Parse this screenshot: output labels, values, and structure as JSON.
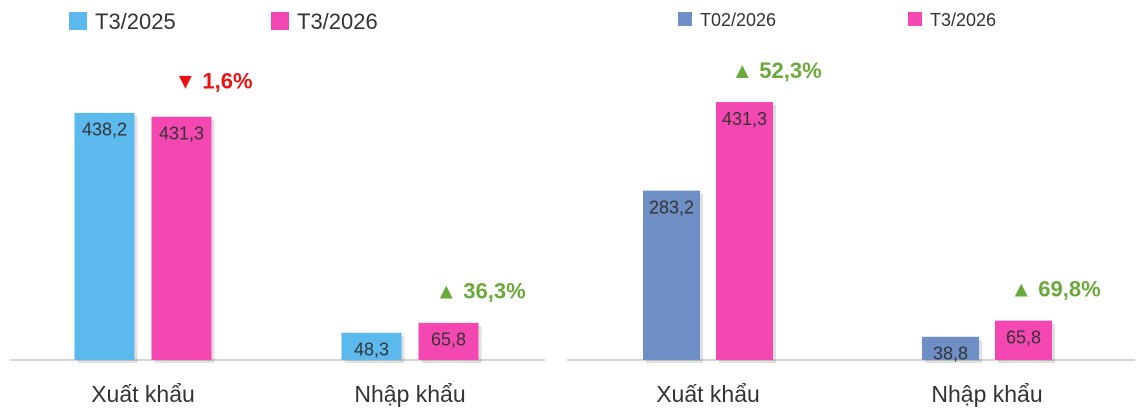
{
  "chart_data": [
    {
      "type": "bar",
      "categories": [
        "Xuất khẩu",
        "Nhập khẩu"
      ],
      "series": [
        {
          "name": "T3/2025",
          "color": "#5bb9ee",
          "values": [
            438.2,
            48.3
          ],
          "value_labels": [
            "438,2",
            "48,3"
          ]
        },
        {
          "name": "T3/2026",
          "color": "#f447b1",
          "values": [
            431.3,
            65.8
          ],
          "value_labels": [
            "431,3",
            "65,8"
          ]
        }
      ],
      "annotations": [
        {
          "text": "▼ 1,6%",
          "color": "#ee1111"
        },
        {
          "text": "▲ 36,3%",
          "color": "#6aaa3a"
        }
      ],
      "ylim": [
        0,
        500
      ]
    },
    {
      "type": "bar",
      "categories": [
        "Xuất khẩu",
        "Nhập khẩu"
      ],
      "series": [
        {
          "name": "T02/2026",
          "color": "#6e8fc6",
          "values": [
            283.2,
            38.8
          ],
          "value_labels": [
            "283,2",
            "38,8"
          ]
        },
        {
          "name": "T3/2026",
          "color": "#f447b1",
          "values": [
            431.3,
            65.8
          ],
          "value_labels": [
            "431,3",
            "65,8"
          ]
        }
      ],
      "annotations": [
        {
          "text": "▲ 52,3%",
          "color": "#6aaa3a"
        },
        {
          "text": "▲ 69,8%",
          "color": "#6aaa3a"
        }
      ],
      "ylim": [
        0,
        500
      ]
    }
  ]
}
